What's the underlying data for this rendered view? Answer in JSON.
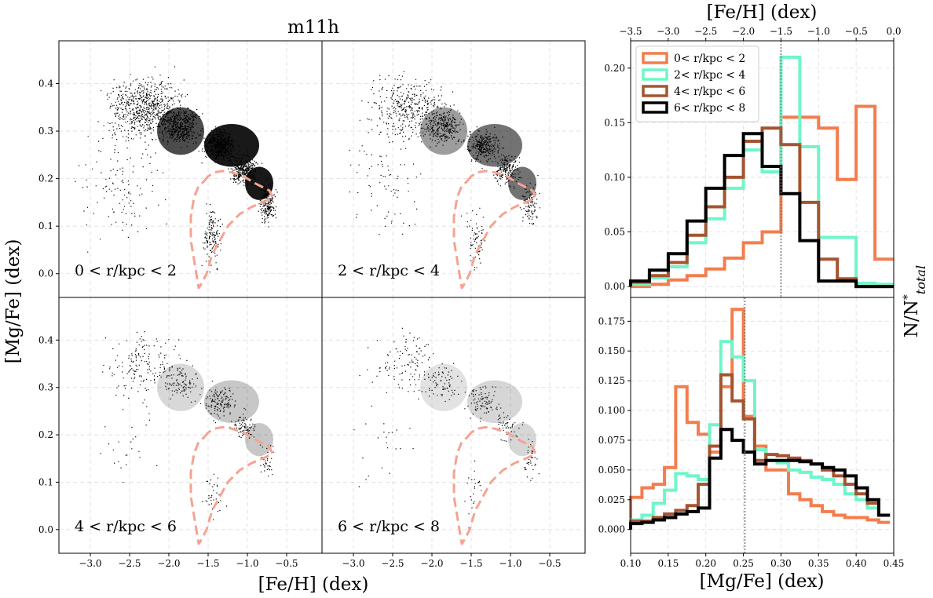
{
  "figure": {
    "title": "m11h",
    "left_xlabel": "[Fe/H] (dex)",
    "left_ylabel": "[Mg/Fe] (dex)",
    "right_top_xlabel": "[Fe/H] (dex)",
    "right_bottom_xlabel": "[Mg/Fe] (dex)",
    "right_ylabel": "N/N*total"
  },
  "panels": [
    {
      "label": "0 < r/kpc < 2",
      "density": 1.0
    },
    {
      "label": "2 < r/kpc < 4",
      "density": 0.55
    },
    {
      "label": "4 < r/kpc < 6",
      "density": 0.22
    },
    {
      "label": "6 < r/kpc < 8",
      "density": 0.16
    }
  ],
  "colors": {
    "r0": "#f37d4d",
    "r1": "#6ff6c8",
    "r2": "#a45430",
    "r3": "#000000",
    "contour": "#f5a393"
  },
  "chart_data": [
    {
      "type": "scatter",
      "title": "m11h",
      "xlabel": "[Fe/H] (dex)",
      "ylabel": "[Mg/Fe] (dex)",
      "xlim": [
        -3.4,
        -0.05
      ],
      "ylim": [
        -0.05,
        0.49
      ],
      "xticks": [
        "−3.0",
        "−2.5",
        "−2.0",
        "−1.5",
        "−1.0",
        "−0.5"
      ],
      "xtick_values": [
        -3.0,
        -2.5,
        -2.0,
        -1.5,
        -1.0,
        -0.5
      ],
      "yticks": [
        "0.0",
        "0.1",
        "0.2",
        "0.3",
        "0.4"
      ],
      "ytick_values": [
        0.0,
        0.1,
        0.2,
        0.3,
        0.4
      ],
      "grid": true,
      "panels": [
        "0 < r/kpc < 2",
        "2 < r/kpc < 4",
        "4 < r/kpc < 6",
        "6 < r/kpc < 8"
      ],
      "contour_feh": [
        -1.55,
        -1.5,
        -1.42,
        -1.32,
        -1.2,
        -1.05,
        -0.9,
        -0.72,
        -0.68,
        -0.78,
        -0.95,
        -1.1,
        -1.25,
        -1.35,
        -1.45,
        -1.52,
        -1.58,
        -1.62,
        -1.62,
        -1.67,
        -1.72,
        -1.72,
        -1.68,
        -1.62,
        -1.58,
        -1.55
      ],
      "contour_mgfe": [
        0.195,
        0.205,
        0.213,
        0.216,
        0.213,
        0.205,
        0.19,
        0.175,
        0.16,
        0.152,
        0.14,
        0.125,
        0.1,
        0.07,
        0.04,
        0.0,
        -0.02,
        -0.03,
        -0.03,
        0.02,
        0.07,
        0.12,
        0.16,
        0.185,
        0.19,
        0.195
      ]
    },
    {
      "type": "line",
      "xlabel": "[Fe/H] (dex)",
      "ylabel": "N/N*total",
      "xlim": [
        -3.5,
        0.0
      ],
      "ylim": [
        -0.01,
        0.225
      ],
      "xticks": [
        "−3.5",
        "−3.0",
        "−2.5",
        "−2.0",
        "−1.5",
        "−1.0",
        "−0.5",
        "0.0"
      ],
      "xtick_values": [
        -3.5,
        -3.0,
        -2.5,
        -2.0,
        -1.5,
        -1.0,
        -0.5,
        0.0
      ],
      "yticks": [
        "0.00",
        "0.05",
        "0.10",
        "0.15",
        "0.20"
      ],
      "ytick_values": [
        0.0,
        0.05,
        0.1,
        0.15,
        0.2
      ],
      "vline": -1.5,
      "legend": "top-left",
      "bin_edges": [
        -3.5,
        -3.25,
        -3.0,
        -2.75,
        -2.5,
        -2.25,
        -2.0,
        -1.75,
        -1.5,
        -1.25,
        -1.0,
        -0.75,
        -0.5,
        -0.25,
        0.0
      ],
      "series": [
        {
          "name": "0< r/kpc < 2",
          "color": "#f37d4d",
          "values": [
            0.0,
            0.002,
            0.006,
            0.01,
            0.016,
            0.026,
            0.04,
            0.05,
            0.155,
            0.155,
            0.145,
            0.098,
            0.165,
            0.025,
            0.0
          ]
        },
        {
          "name": "2< r/kpc < 4",
          "color": "#6ff6c8",
          "values": [
            0.002,
            0.008,
            0.018,
            0.04,
            0.062,
            0.09,
            0.125,
            0.105,
            0.21,
            0.128,
            0.045,
            0.045,
            0.003,
            0.002,
            0.0
          ]
        },
        {
          "name": "4< r/kpc < 6",
          "color": "#a45430",
          "values": [
            0.004,
            0.01,
            0.022,
            0.047,
            0.073,
            0.1,
            0.133,
            0.145,
            0.13,
            0.077,
            0.025,
            0.007,
            0.0,
            0.0,
            0.0
          ]
        },
        {
          "name": "6< r/kpc < 8",
          "color": "#000000",
          "values": [
            0.005,
            0.015,
            0.03,
            0.06,
            0.09,
            0.12,
            0.14,
            0.11,
            0.085,
            0.042,
            0.005,
            0.005,
            0.0,
            0.0,
            0.0
          ]
        }
      ]
    },
    {
      "type": "line",
      "xlabel": "[Mg/Fe] (dex)",
      "ylabel": "N/N*total",
      "xlim": [
        0.1,
        0.45
      ],
      "ylim": [
        -0.02,
        0.195
      ],
      "xticks": [
        "0.10",
        "0.15",
        "0.20",
        "0.25",
        "0.30",
        "0.35",
        "0.40",
        "0.45"
      ],
      "xtick_values": [
        0.1,
        0.15,
        0.2,
        0.25,
        0.3,
        0.35,
        0.4,
        0.45
      ],
      "yticks": [
        "0.000",
        "0.025",
        "0.050",
        "0.075",
        "0.100",
        "0.125",
        "0.150",
        "0.175"
      ],
      "ytick_values": [
        0.0,
        0.025,
        0.05,
        0.075,
        0.1,
        0.125,
        0.15,
        0.175
      ],
      "vline": 0.252,
      "bin_edges": [
        0.1,
        0.115,
        0.13,
        0.145,
        0.16,
        0.175,
        0.19,
        0.205,
        0.22,
        0.235,
        0.25,
        0.265,
        0.28,
        0.295,
        0.31,
        0.325,
        0.34,
        0.355,
        0.37,
        0.385,
        0.4,
        0.415,
        0.43,
        0.445
      ],
      "series": [
        {
          "name": "0< r/kpc < 2",
          "color": "#f37d4d",
          "values": [
            0.027,
            0.035,
            0.038,
            0.052,
            0.12,
            0.09,
            0.08,
            0.065,
            0.12,
            0.185,
            0.095,
            0.07,
            0.05,
            0.05,
            0.03,
            0.025,
            0.02,
            0.015,
            0.012,
            0.01,
            0.01,
            0.008,
            0.006
          ]
        },
        {
          "name": "2< r/kpc < 4",
          "color": "#6ff6c8",
          "values": [
            0.008,
            0.012,
            0.022,
            0.033,
            0.047,
            0.045,
            0.042,
            0.088,
            0.158,
            0.145,
            0.125,
            0.067,
            0.058,
            0.056,
            0.05,
            0.048,
            0.044,
            0.042,
            0.038,
            0.03,
            0.025,
            0.018,
            0.012
          ]
        },
        {
          "name": "4< r/kpc < 6",
          "color": "#a45430",
          "values": [
            0.007,
            0.007,
            0.01,
            0.013,
            0.016,
            0.02,
            0.038,
            0.07,
            0.13,
            0.108,
            0.093,
            0.058,
            0.063,
            0.062,
            0.06,
            0.058,
            0.055,
            0.05,
            0.045,
            0.038,
            0.03,
            0.022,
            0.012
          ]
        },
        {
          "name": "6< r/kpc < 8",
          "color": "#000000",
          "values": [
            0.005,
            0.006,
            0.008,
            0.01,
            0.013,
            0.015,
            0.018,
            0.06,
            0.084,
            0.075,
            0.065,
            0.055,
            0.058,
            0.058,
            0.058,
            0.057,
            0.055,
            0.052,
            0.05,
            0.045,
            0.035,
            0.025,
            0.012
          ]
        }
      ]
    }
  ]
}
